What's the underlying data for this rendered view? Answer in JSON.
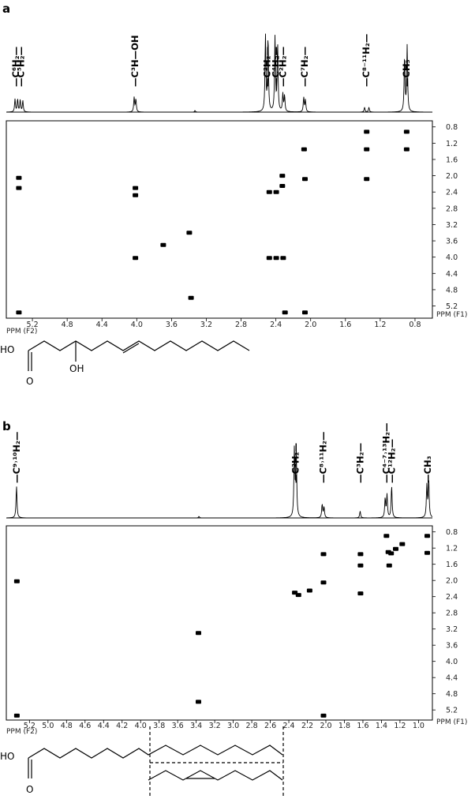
{
  "panels": [
    {
      "label": "a",
      "type": "nmr_cosy",
      "x_axis": {
        "label": "PPM (F2)",
        "ticks": [
          "5.2",
          "4.8",
          "4.4",
          "4.0",
          "3.6",
          "3.2",
          "2.8",
          "2.4",
          "2.0",
          "1.6",
          "1.2",
          "0.8"
        ]
      },
      "y_axis": {
        "label": "PPM (F1)",
        "ticks": [
          "0.8",
          "1.2",
          "1.6",
          "2.0",
          "2.4",
          "2.8",
          "3.2",
          "3.6",
          "4.0",
          "4.4",
          "4.8",
          "5.2"
        ]
      },
      "assignments": [
        {
          "text": "—C⁶H₂—",
          "ppm": 5.39
        },
        {
          "text": "—C⁵H₂—",
          "ppm": 5.33
        },
        {
          "text": "—C³H—OH",
          "ppm": 4.02
        },
        {
          "text": "—C²H₂—",
          "ppm": 2.5
        },
        {
          "text": "—C⁴H₂—",
          "ppm": 2.4
        },
        {
          "text": "—C²H₂—",
          "ppm": 2.32
        },
        {
          "text": "—C⁷H₂—",
          "ppm": 2.07
        },
        {
          "text": "—C⁸⁻¹¹H₂—",
          "ppm": 1.36
        },
        {
          "text": "—CH₃",
          "ppm": 0.9
        }
      ],
      "chart_data": {
        "type": "scatter",
        "peaks_1d": [
          {
            "ppm": 5.4,
            "height": 0.16
          },
          {
            "ppm": 5.37,
            "height": 0.16
          },
          {
            "ppm": 5.34,
            "height": 0.15
          },
          {
            "ppm": 5.31,
            "height": 0.14
          },
          {
            "ppm": 4.03,
            "height": 0.18
          },
          {
            "ppm": 4.01,
            "height": 0.16
          },
          {
            "ppm": 3.33,
            "height": 0.02
          },
          {
            "ppm": 2.52,
            "height": 0.95
          },
          {
            "ppm": 2.49,
            "height": 0.93
          },
          {
            "ppm": 2.41,
            "height": 0.92
          },
          {
            "ppm": 2.38,
            "height": 0.85
          },
          {
            "ppm": 2.32,
            "height": 0.22
          },
          {
            "ppm": 2.3,
            "height": 0.2
          },
          {
            "ppm": 2.08,
            "height": 0.18
          },
          {
            "ppm": 2.06,
            "height": 0.15
          },
          {
            "ppm": 1.38,
            "height": 0.06
          },
          {
            "ppm": 1.33,
            "height": 0.06
          },
          {
            "ppm": 0.92,
            "height": 0.7
          },
          {
            "ppm": 0.89,
            "height": 0.82
          }
        ],
        "cross_peaks": [
          {
            "x": 5.36,
            "y": 2.05
          },
          {
            "x": 5.36,
            "y": 2.3
          },
          {
            "x": 5.36,
            "y": 5.36
          },
          {
            "x": 4.02,
            "y": 2.3
          },
          {
            "x": 4.02,
            "y": 2.48
          },
          {
            "x": 4.02,
            "y": 4.02
          },
          {
            "x": 3.4,
            "y": 3.4
          },
          {
            "x": 3.38,
            "y": 5.0
          },
          {
            "x": 3.7,
            "y": 3.7
          },
          {
            "x": 2.48,
            "y": 2.4
          },
          {
            "x": 2.48,
            "y": 4.02
          },
          {
            "x": 2.4,
            "y": 2.4
          },
          {
            "x": 2.4,
            "y": 4.02
          },
          {
            "x": 2.33,
            "y": 2.0
          },
          {
            "x": 2.33,
            "y": 2.25
          },
          {
            "x": 2.32,
            "y": 4.02
          },
          {
            "x": 2.3,
            "y": 5.36
          },
          {
            "x": 2.08,
            "y": 1.35
          },
          {
            "x": 2.07,
            "y": 2.08
          },
          {
            "x": 2.07,
            "y": 5.36
          },
          {
            "x": 1.36,
            "y": 0.92
          },
          {
            "x": 1.36,
            "y": 1.35
          },
          {
            "x": 1.36,
            "y": 2.08
          },
          {
            "x": 0.9,
            "y": 0.92
          },
          {
            "x": 0.9,
            "y": 1.35
          }
        ],
        "xlim": [
          5.5,
          0.6
        ],
        "ylim": [
          0.65,
          5.5
        ]
      }
    },
    {
      "label": "b",
      "type": "nmr_cosy",
      "x_axis": {
        "label": "PPM (F2)",
        "ticks": [
          "5.2",
          "5.0",
          "4.8",
          "4.6",
          "4.4",
          "4.2",
          "4.0",
          "3.8",
          "3.6",
          "3.4",
          "3.2",
          "3.0",
          "2.8",
          "2.6",
          "2.4",
          "2.2",
          "2.0",
          "1.8",
          "1.6",
          "1.4",
          "1.2",
          "1.0"
        ]
      },
      "y_axis": {
        "label": "PPM (F1)",
        "ticks": [
          "0.8",
          "1.2",
          "1.6",
          "2.0",
          "2.4",
          "2.8",
          "3.2",
          "3.6",
          "4.0",
          "4.4",
          "4.8",
          "5.2"
        ]
      },
      "assignments": [
        {
          "text": "—C⁹˒¹⁰H₂—",
          "ppm": 5.34
        },
        {
          "text": "—C²H₂—",
          "ppm": 2.33
        },
        {
          "text": "—C⁸˒¹¹H₂—",
          "ppm": 2.03
        },
        {
          "text": "—C³H₂—",
          "ppm": 1.63
        },
        {
          "text": "—C⁴⁻⁷˒¹³H₂—",
          "ppm": 1.35
        },
        {
          "text": "—C¹²H₂—",
          "ppm": 1.29
        },
        {
          "text": "—CH₃",
          "ppm": 0.9
        }
      ],
      "chart_data": {
        "type": "scatter",
        "peaks_1d": [
          {
            "ppm": 5.34,
            "height": 0.42
          },
          {
            "ppm": 3.37,
            "height": 0.02
          },
          {
            "ppm": 2.34,
            "height": 0.9
          },
          {
            "ppm": 2.32,
            "height": 0.88
          },
          {
            "ppm": 2.04,
            "height": 0.18
          },
          {
            "ppm": 2.02,
            "height": 0.14
          },
          {
            "ppm": 1.63,
            "height": 0.09
          },
          {
            "ppm": 1.36,
            "height": 0.25
          },
          {
            "ppm": 1.34,
            "height": 0.3
          },
          {
            "ppm": 1.29,
            "height": 0.42
          },
          {
            "ppm": 0.91,
            "height": 0.42
          },
          {
            "ppm": 0.89,
            "height": 0.5
          }
        ],
        "cross_peaks": [
          {
            "x": 5.34,
            "y": 2.02
          },
          {
            "x": 5.34,
            "y": 5.34
          },
          {
            "x": 3.38,
            "y": 3.3
          },
          {
            "x": 3.38,
            "y": 5.0
          },
          {
            "x": 2.34,
            "y": 2.3
          },
          {
            "x": 2.3,
            "y": 2.36
          },
          {
            "x": 2.18,
            "y": 2.25
          },
          {
            "x": 2.03,
            "y": 1.35
          },
          {
            "x": 2.03,
            "y": 2.05
          },
          {
            "x": 2.03,
            "y": 5.34
          },
          {
            "x": 1.63,
            "y": 1.35
          },
          {
            "x": 1.63,
            "y": 1.63
          },
          {
            "x": 1.63,
            "y": 2.32
          },
          {
            "x": 1.35,
            "y": 0.9
          },
          {
            "x": 1.33,
            "y": 1.3
          },
          {
            "x": 1.3,
            "y": 1.33
          },
          {
            "x": 1.32,
            "y": 1.63
          },
          {
            "x": 1.25,
            "y": 1.22
          },
          {
            "x": 1.18,
            "y": 1.1
          },
          {
            "x": 0.91,
            "y": 0.9
          },
          {
            "x": 0.91,
            "y": 1.32
          }
        ],
        "xlim": [
          5.45,
          0.85
        ],
        "ylim": [
          0.65,
          5.45
        ]
      }
    }
  ],
  "structures": {
    "a": {
      "ho": "HO",
      "o": "O",
      "oh": "OH"
    },
    "b": {
      "ho": "HO",
      "o": "O"
    }
  }
}
